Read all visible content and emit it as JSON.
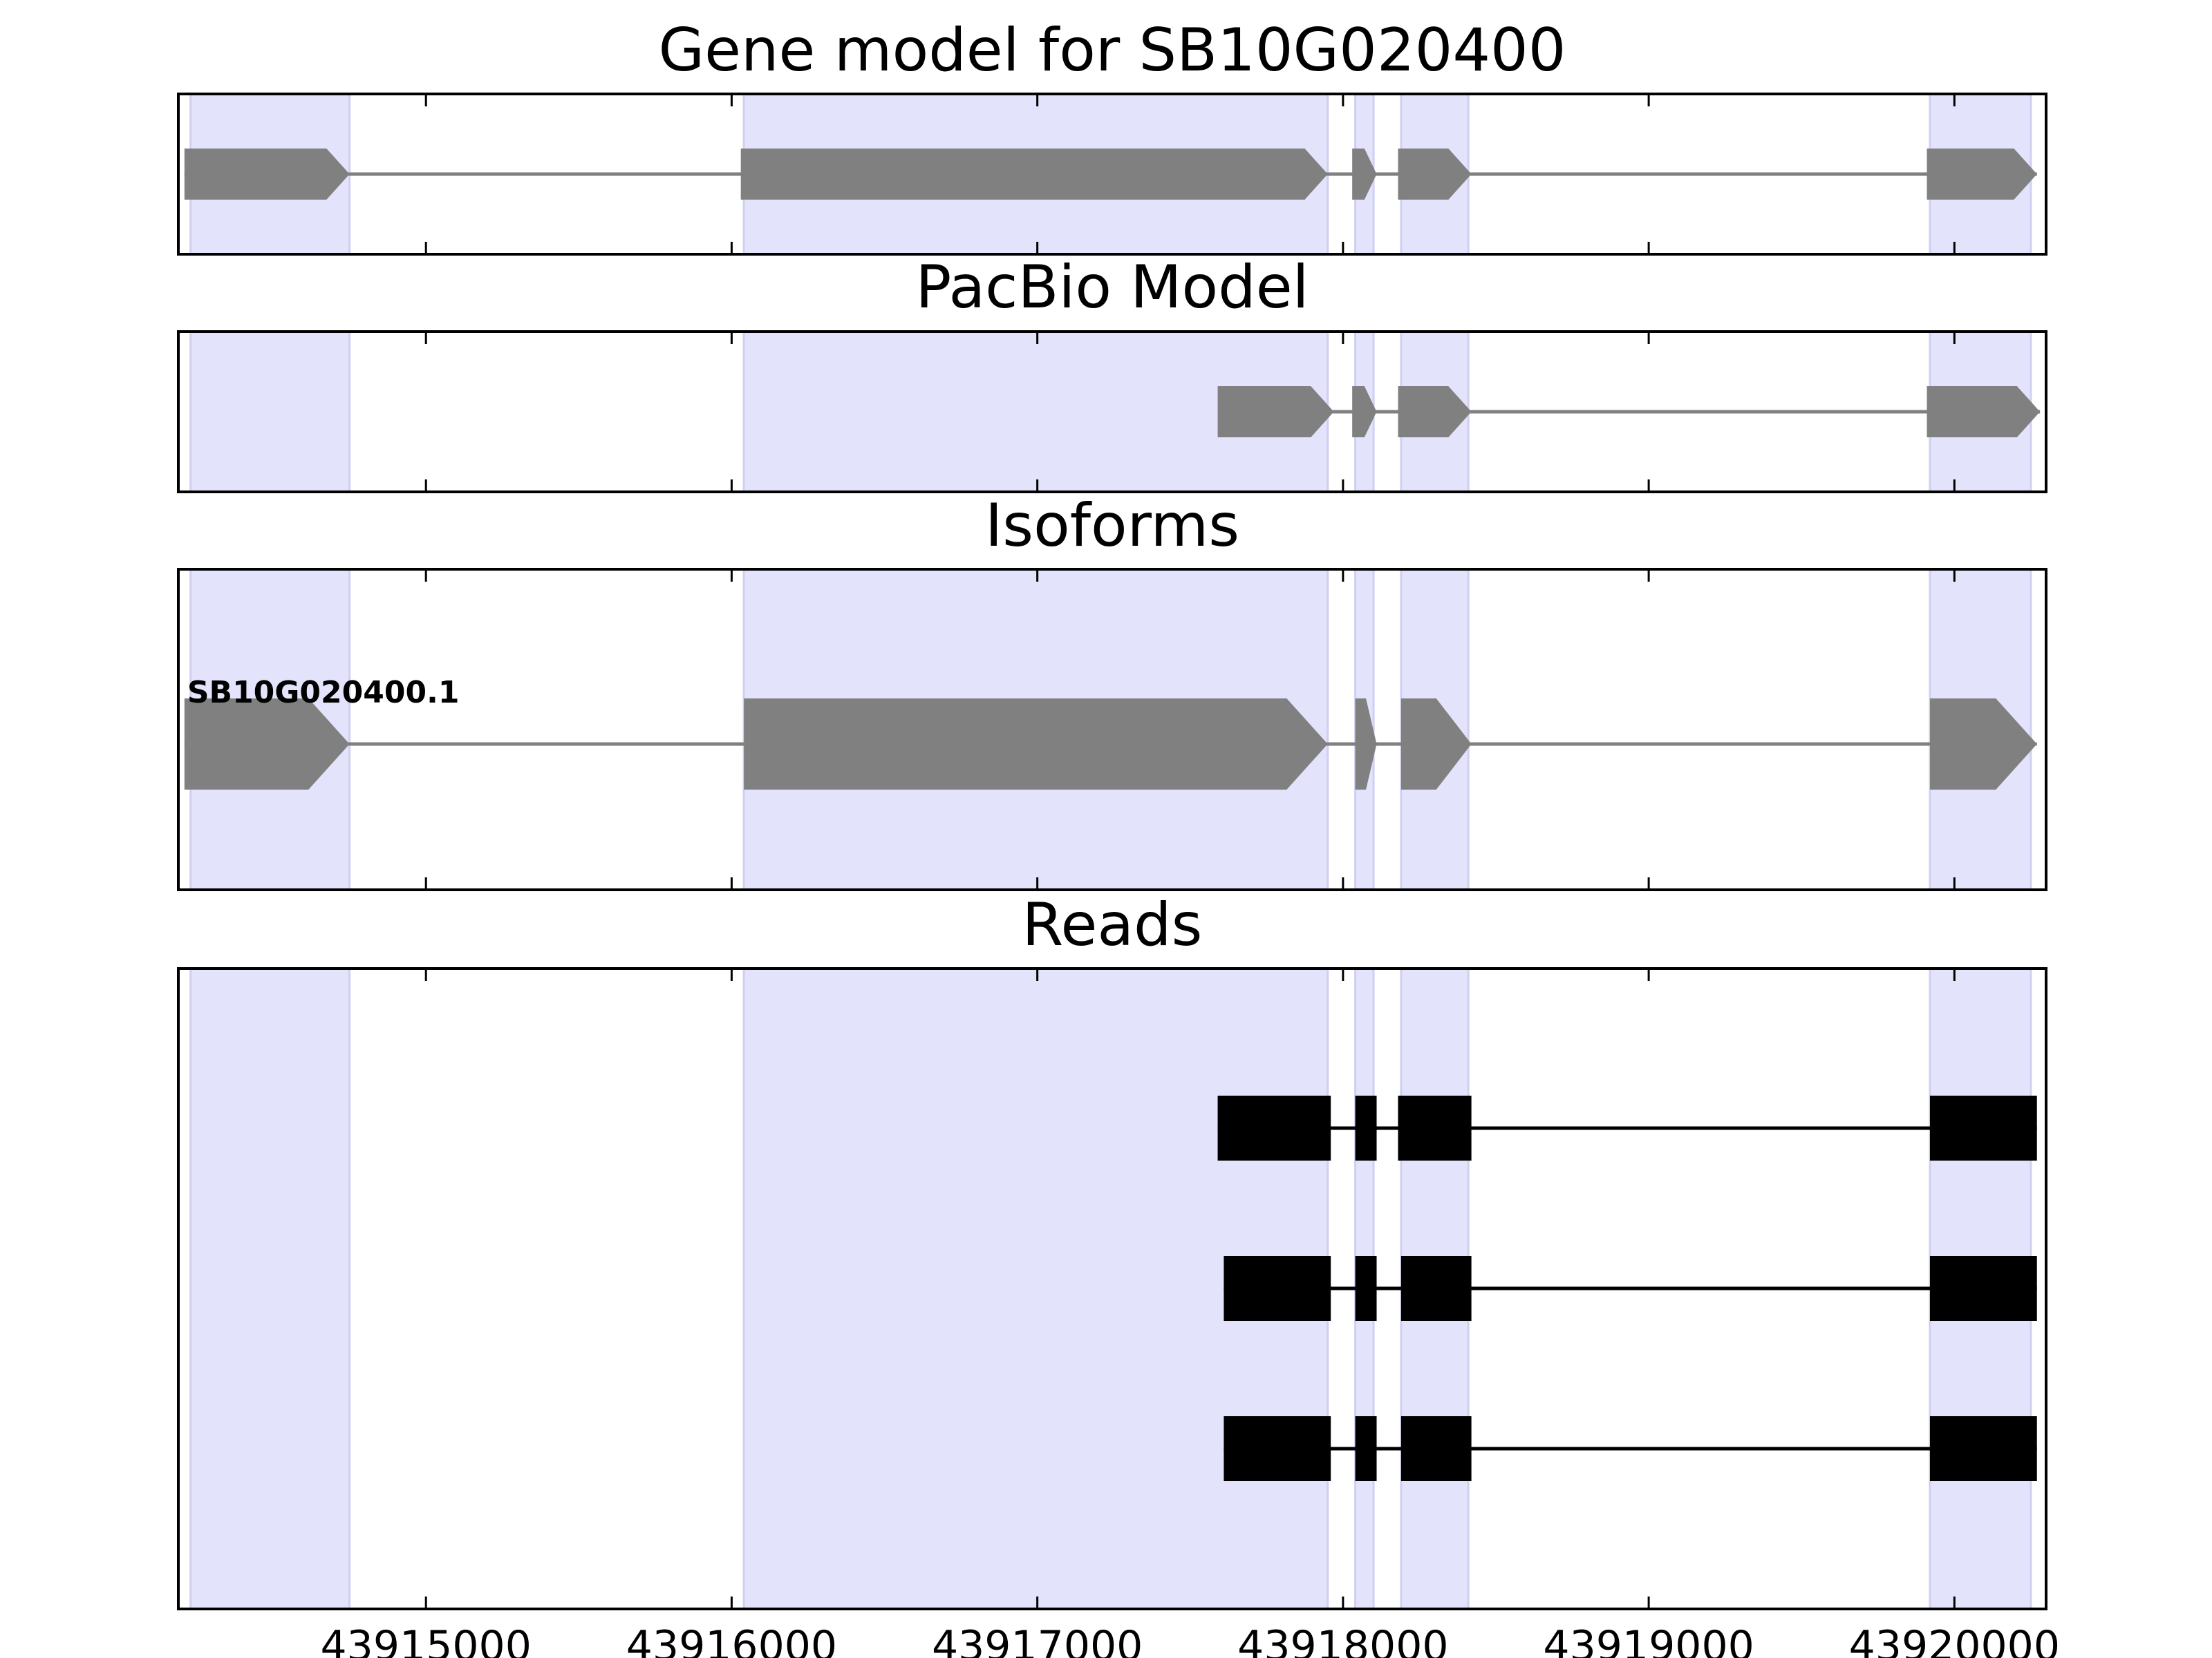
{
  "chart_data": {
    "type": "gene_track",
    "xlim": [
      43914190,
      43920300
    ],
    "x_ticks": [
      43915000,
      43916000,
      43917000,
      43918000,
      43919000,
      43920000
    ],
    "highlight_color": "#e3e3fc",
    "highlight_regions": [
      [
        43914230,
        43914750
      ],
      [
        43916040,
        43917950
      ],
      [
        43918040,
        43918100
      ],
      [
        43918190,
        43918410
      ],
      [
        43919920,
        43920250
      ]
    ],
    "panels": [
      {
        "title": "Gene model for SB10G020400",
        "style": "arrow",
        "color": "#808080",
        "rows": [
          {
            "label": "",
            "strand": "+",
            "exons": [
              [
                43914210,
                43914750
              ],
              [
                43916030,
                43917950
              ],
              [
                43918030,
                43918110
              ],
              [
                43918180,
                43918420
              ],
              [
                43919910,
                43920270
              ]
            ]
          }
        ]
      },
      {
        "title": "PacBio Model",
        "style": "arrow",
        "color": "#808080",
        "rows": [
          {
            "label": "",
            "strand": "+",
            "exons": [
              [
                43917590,
                43917970
              ],
              [
                43918030,
                43918110
              ],
              [
                43918180,
                43918420
              ],
              [
                43919910,
                43920280
              ]
            ]
          }
        ]
      },
      {
        "title": "Isoforms",
        "style": "arrow",
        "color": "#808080",
        "rows": [
          {
            "label": "SB10G020400.1",
            "strand": "+",
            "exons": [
              [
                43914210,
                43914750
              ],
              [
                43916040,
                43917950
              ],
              [
                43918040,
                43918110
              ],
              [
                43918190,
                43918420
              ],
              [
                43919920,
                43920270
              ]
            ]
          }
        ]
      },
      {
        "title": "Reads",
        "style": "box",
        "color": "#000000",
        "rows": [
          {
            "label": "",
            "strand": "+",
            "exons": [
              [
                43917590,
                43917960
              ],
              [
                43918040,
                43918110
              ],
              [
                43918180,
                43918420
              ],
              [
                43919920,
                43920270
              ]
            ]
          },
          {
            "label": "",
            "strand": "+",
            "exons": [
              [
                43917610,
                43917960
              ],
              [
                43918040,
                43918110
              ],
              [
                43918190,
                43918420
              ],
              [
                43919920,
                43920270
              ]
            ]
          },
          {
            "label": "",
            "strand": "+",
            "exons": [
              [
                43917610,
                43917960
              ],
              [
                43918040,
                43918110
              ],
              [
                43918190,
                43918420
              ],
              [
                43919920,
                43920270
              ]
            ]
          }
        ]
      }
    ]
  }
}
